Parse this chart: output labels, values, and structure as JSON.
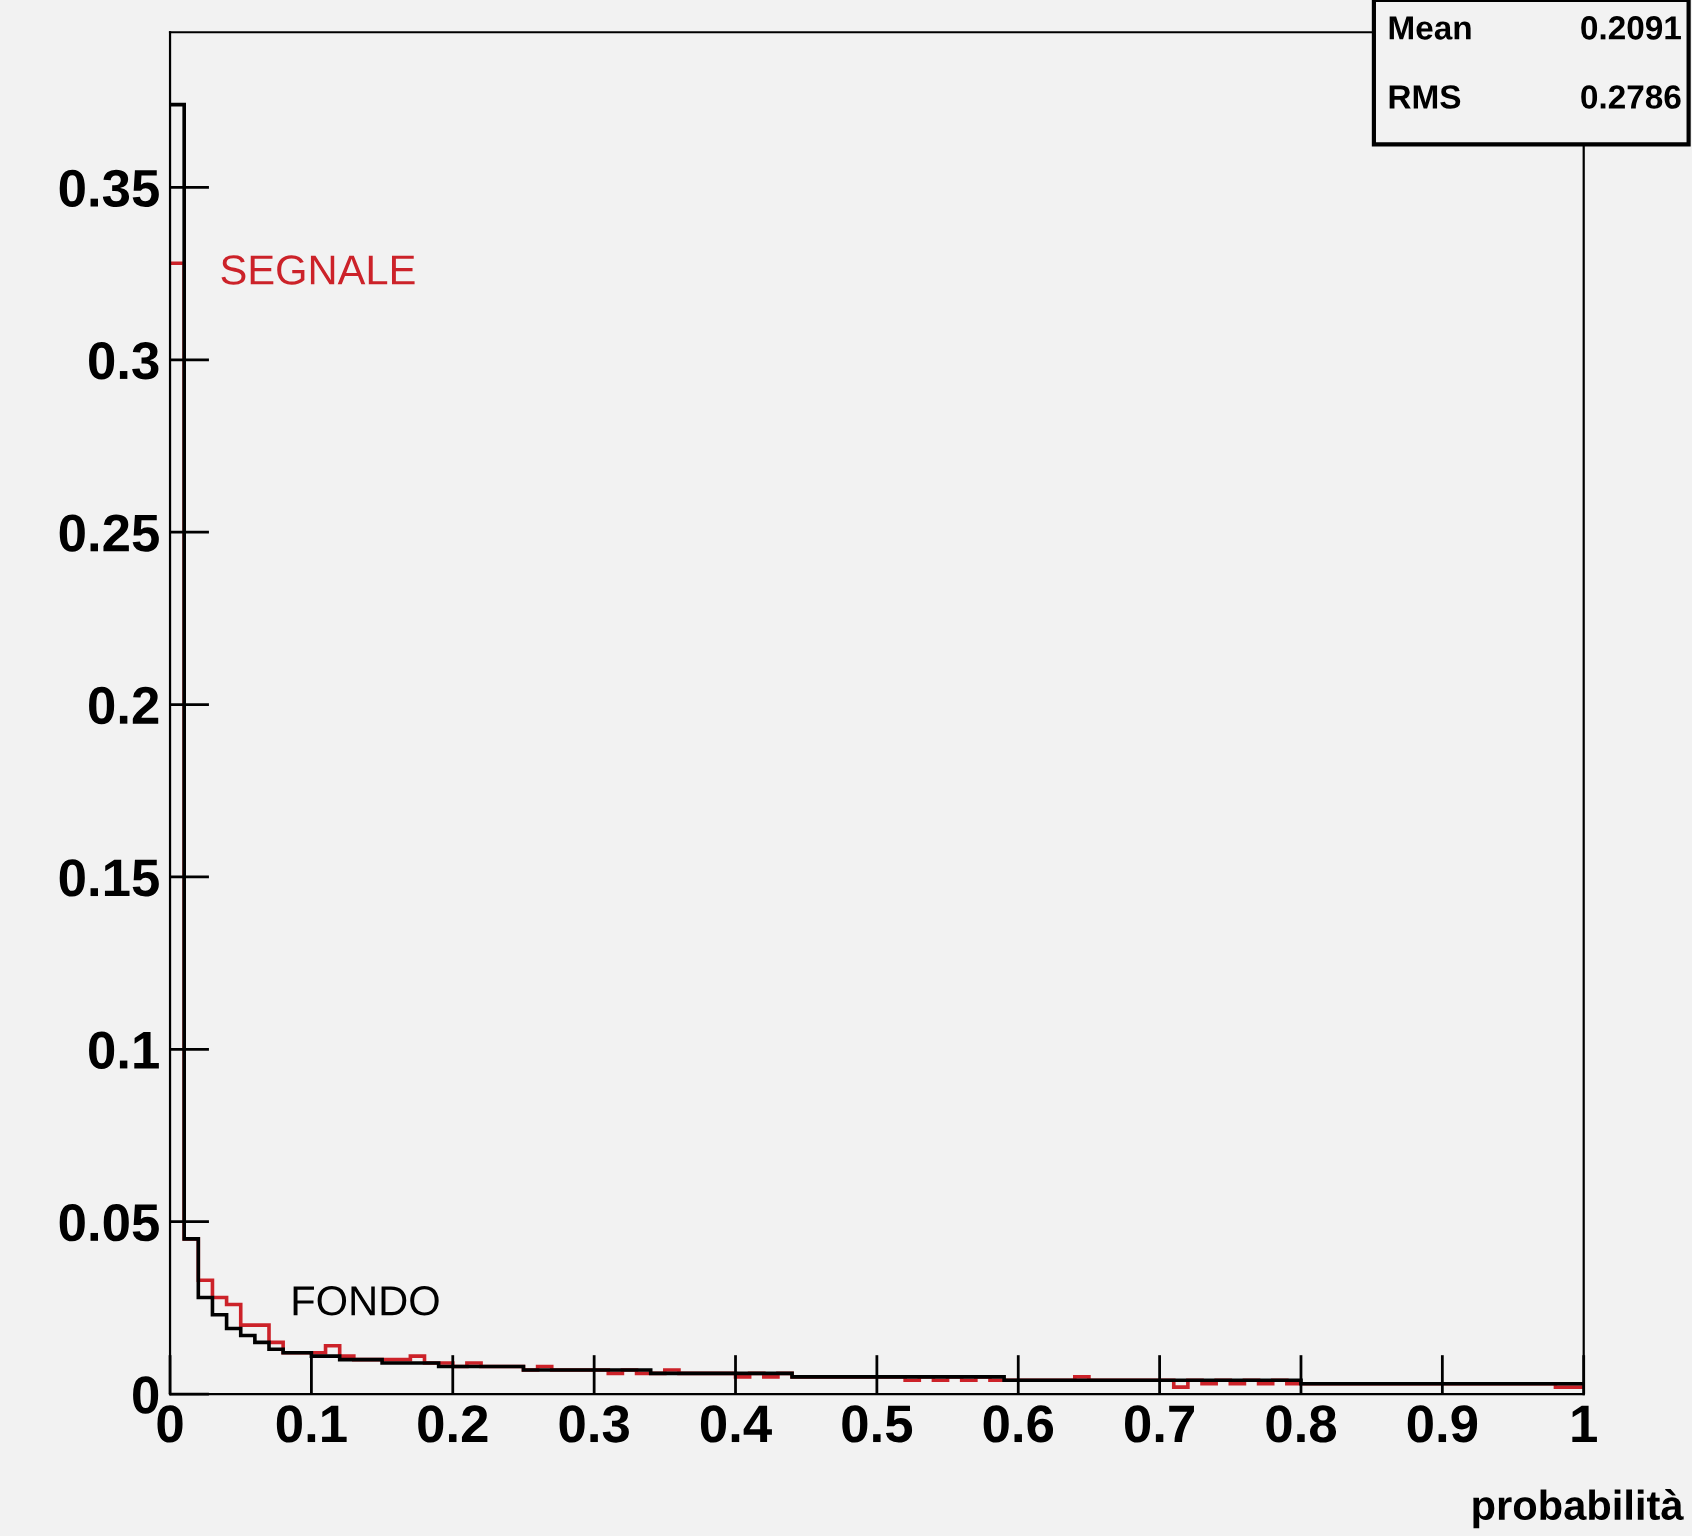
{
  "chart_data": {
    "type": "histogram",
    "xlabel": "probabilità",
    "bins": [
      0,
      0.01,
      0.02,
      0.03,
      0.04,
      0.05,
      0.06,
      0.07,
      0.08,
      0.09,
      0.1,
      0.11,
      0.12,
      0.13,
      0.14,
      0.15,
      0.16,
      0.17,
      0.18,
      0.19,
      0.2,
      0.21,
      0.22,
      0.23,
      0.24,
      0.25,
      0.26,
      0.27,
      0.28,
      0.29,
      0.3,
      0.31,
      0.32,
      0.33,
      0.34,
      0.35,
      0.36,
      0.37,
      0.38,
      0.39,
      0.4,
      0.41,
      0.42,
      0.43,
      0.44,
      0.45,
      0.46,
      0.47,
      0.48,
      0.49,
      0.5,
      0.51,
      0.52,
      0.53,
      0.54,
      0.55,
      0.56,
      0.57,
      0.58,
      0.59,
      0.6,
      0.61,
      0.62,
      0.63,
      0.64,
      0.65,
      0.66,
      0.67,
      0.68,
      0.69,
      0.7,
      0.71,
      0.72,
      0.73,
      0.74,
      0.75,
      0.76,
      0.77,
      0.78,
      0.79,
      0.8,
      0.81,
      0.82,
      0.83,
      0.84,
      0.85,
      0.86,
      0.87,
      0.88,
      0.89,
      0.9,
      0.91,
      0.92,
      0.93,
      0.94,
      0.95,
      0.96,
      0.97,
      0.98,
      0.99,
      1
    ],
    "series": [
      {
        "name": "SEGNALE",
        "color": "#cc2229",
        "values": [
          0.328,
          0.045,
          0.033,
          0.028,
          0.026,
          0.02,
          0.02,
          0.015,
          0.012,
          0.012,
          0.012,
          0.014,
          0.011,
          0.01,
          0.01,
          0.01,
          0.01,
          0.011,
          0.009,
          0.009,
          0.008,
          0.009,
          0.008,
          0.008,
          0.008,
          0.007,
          0.008,
          0.007,
          0.007,
          0.007,
          0.007,
          0.006,
          0.007,
          0.006,
          0.006,
          0.007,
          0.006,
          0.006,
          0.006,
          0.006,
          0.005,
          0.006,
          0.005,
          0.006,
          0.005,
          0.005,
          0.005,
          0.005,
          0.005,
          0.005,
          0.005,
          0.005,
          0.004,
          0.005,
          0.004,
          0.005,
          0.004,
          0.005,
          0.004,
          0.004,
          0.004,
          0.004,
          0.004,
          0.004,
          0.005,
          0.004,
          0.004,
          0.004,
          0.004,
          0.004,
          0.004,
          0.002,
          0.004,
          0.003,
          0.004,
          0.003,
          0.004,
          0.003,
          0.004,
          0.003,
          0.003,
          0.003,
          0.003,
          0.003,
          0.003,
          0.003,
          0.003,
          0.003,
          0.003,
          0.003,
          0.003,
          0.003,
          0.003,
          0.003,
          0.003,
          0.003,
          0.003,
          0.003,
          0.002,
          0.002
        ]
      },
      {
        "name": "FONDO",
        "color": "#000000",
        "values": [
          0.374,
          0.045,
          0.028,
          0.023,
          0.019,
          0.017,
          0.015,
          0.013,
          0.012,
          0.012,
          0.011,
          0.011,
          0.01,
          0.01,
          0.01,
          0.009,
          0.009,
          0.009,
          0.009,
          0.008,
          0.008,
          0.008,
          0.008,
          0.008,
          0.008,
          0.007,
          0.007,
          0.007,
          0.007,
          0.007,
          0.007,
          0.007,
          0.007,
          0.007,
          0.006,
          0.006,
          0.006,
          0.006,
          0.006,
          0.006,
          0.006,
          0.006,
          0.006,
          0.006,
          0.005,
          0.005,
          0.005,
          0.005,
          0.005,
          0.005,
          0.005,
          0.005,
          0.005,
          0.005,
          0.005,
          0.005,
          0.005,
          0.005,
          0.005,
          0.004,
          0.004,
          0.004,
          0.004,
          0.004,
          0.004,
          0.004,
          0.004,
          0.004,
          0.004,
          0.004,
          0.004,
          0.004,
          0.004,
          0.004,
          0.004,
          0.004,
          0.004,
          0.004,
          0.004,
          0.004,
          0.003,
          0.003,
          0.003,
          0.003,
          0.003,
          0.003,
          0.003,
          0.003,
          0.003,
          0.003,
          0.003,
          0.003,
          0.003,
          0.003,
          0.003,
          0.003,
          0.003,
          0.003,
          0.003,
          0.003
        ]
      }
    ],
    "xlim": [
      0,
      1
    ],
    "ylim": [
      0,
      0.395
    ],
    "xticks": [
      {
        "value": 0,
        "label": "0"
      },
      0.1,
      0.2,
      0.3,
      0.4,
      0.5,
      0.6,
      0.7,
      0.8,
      0.9,
      {
        "value": 1,
        "label": "1"
      }
    ],
    "yticks": [
      {
        "value": 0,
        "label": "0"
      },
      0.05,
      0.1,
      0.15,
      0.2,
      0.25,
      0.3,
      0.35
    ],
    "annotations": [
      "Mean",
      "0.2091",
      "RMS",
      "0.2786"
    ],
    "grid": false
  }
}
